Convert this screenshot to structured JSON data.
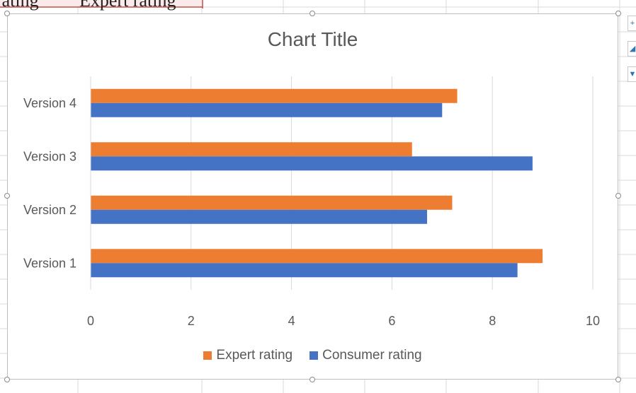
{
  "sheet": {
    "header_cells": [
      "rating",
      "Expert rating"
    ]
  },
  "chart_data": {
    "type": "bar",
    "orientation": "horizontal",
    "title": "Chart Title",
    "categories": [
      "Version 1",
      "Version 2",
      "Version 3",
      "Version 4"
    ],
    "series": [
      {
        "name": "Consumer rating",
        "color": "#4472c4",
        "values": [
          8.5,
          6.7,
          8.8,
          7.0
        ]
      },
      {
        "name": "Expert rating",
        "color": "#ed7d31",
        "values": [
          9.0,
          7.2,
          6.4,
          7.3
        ]
      }
    ],
    "xlim": [
      0,
      10
    ],
    "xticks": [
      "0",
      "2",
      "4",
      "6",
      "8",
      "10"
    ],
    "grid": true,
    "legend_position": "bottom",
    "legend_order": [
      "Expert rating",
      "Consumer rating"
    ]
  }
}
